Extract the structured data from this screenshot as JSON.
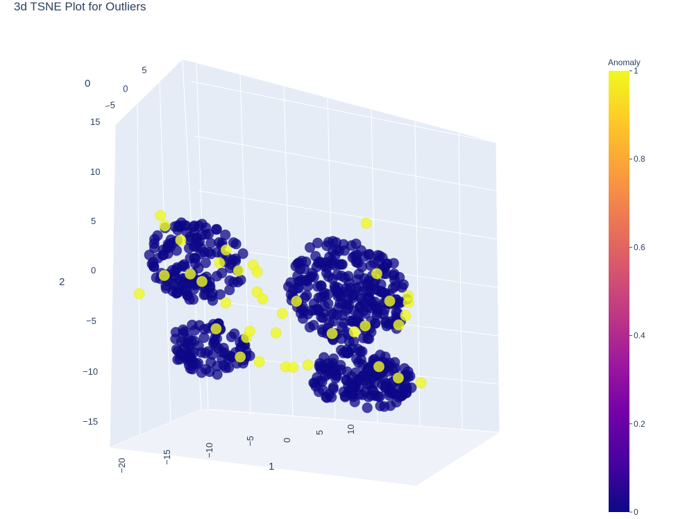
{
  "chart_data": {
    "type": "scatter",
    "subtype": "scatter3d",
    "title": "3d TSNE Plot for Outliers",
    "x_axis": {
      "label": "1",
      "ticks": [
        "−20",
        "−15",
        "−10",
        "−5",
        "0",
        "5",
        "10"
      ]
    },
    "y_axis": {
      "label": "0",
      "ticks": [
        "5",
        "0",
        "−5"
      ]
    },
    "z_axis": {
      "label": "2",
      "ticks": [
        "15",
        "10",
        "5",
        "0",
        "−5",
        "−10",
        "−15"
      ],
      "range": [
        -17,
        16
      ]
    },
    "colorbar": {
      "title": "Anomaly",
      "ticks": [
        "1",
        "0.8",
        "0.6",
        "0.4",
        "0.2",
        "0"
      ],
      "range": [
        0,
        1
      ],
      "colorscale": [
        "#0d0887",
        "#46039f",
        "#7201a8",
        "#9c179e",
        "#bd3786",
        "#d8576b",
        "#ed7953",
        "#fb9f3a",
        "#fdca26",
        "#f0f921"
      ]
    },
    "clusters": [
      {
        "name_hint": "upper-left",
        "cx": -12,
        "cz": 6,
        "rx": 6.5,
        "rz": 6,
        "n": 150
      },
      {
        "name_hint": "upper-right",
        "cx": 8,
        "cz": 3,
        "rx": 8,
        "rz": 8,
        "n": 260
      },
      {
        "name_hint": "lower-left",
        "cx": -11,
        "cz": -7,
        "rx": 5.5,
        "rz": 4,
        "n": 95
      },
      {
        "name_hint": "lower-right",
        "cx": 9,
        "cz": -10,
        "rx": 7,
        "rz": 4.5,
        "n": 170
      }
    ],
    "anomaly_points": [
      [
        -16.5,
        12.5
      ],
      [
        -16,
        11
      ],
      [
        -14,
        9
      ],
      [
        -16.5,
        3.5
      ],
      [
        -13,
        4
      ],
      [
        -20,
        0.5
      ],
      [
        -11.5,
        3
      ],
      [
        -8,
        8
      ],
      [
        -9,
        6
      ],
      [
        -6.5,
        5
      ],
      [
        -4.5,
        6
      ],
      [
        -4,
        5
      ],
      [
        -4.2,
        2
      ],
      [
        -3.5,
        1
      ],
      [
        -8.5,
        0
      ],
      [
        -10,
        -4
      ],
      [
        -6,
        -5
      ],
      [
        -5.5,
        -4
      ],
      [
        -7,
        -8
      ],
      [
        -4.5,
        -8.5
      ],
      [
        -2,
        -4
      ],
      [
        -1,
        -1
      ],
      [
        1,
        1
      ],
      [
        -1,
        -9
      ],
      [
        0,
        -9
      ],
      [
        2,
        -8.5
      ],
      [
        5.5,
        -3.5
      ],
      [
        8.5,
        -3
      ],
      [
        10,
        -2
      ],
      [
        11,
        13.5
      ],
      [
        12,
        6
      ],
      [
        13.5,
        2
      ],
      [
        15.5,
        0
      ],
      [
        14.5,
        -1.5
      ],
      [
        16,
        3
      ],
      [
        14,
        -9.5
      ],
      [
        17,
        -10
      ],
      [
        11.5,
        -8
      ],
      [
        16,
        2
      ]
    ]
  }
}
